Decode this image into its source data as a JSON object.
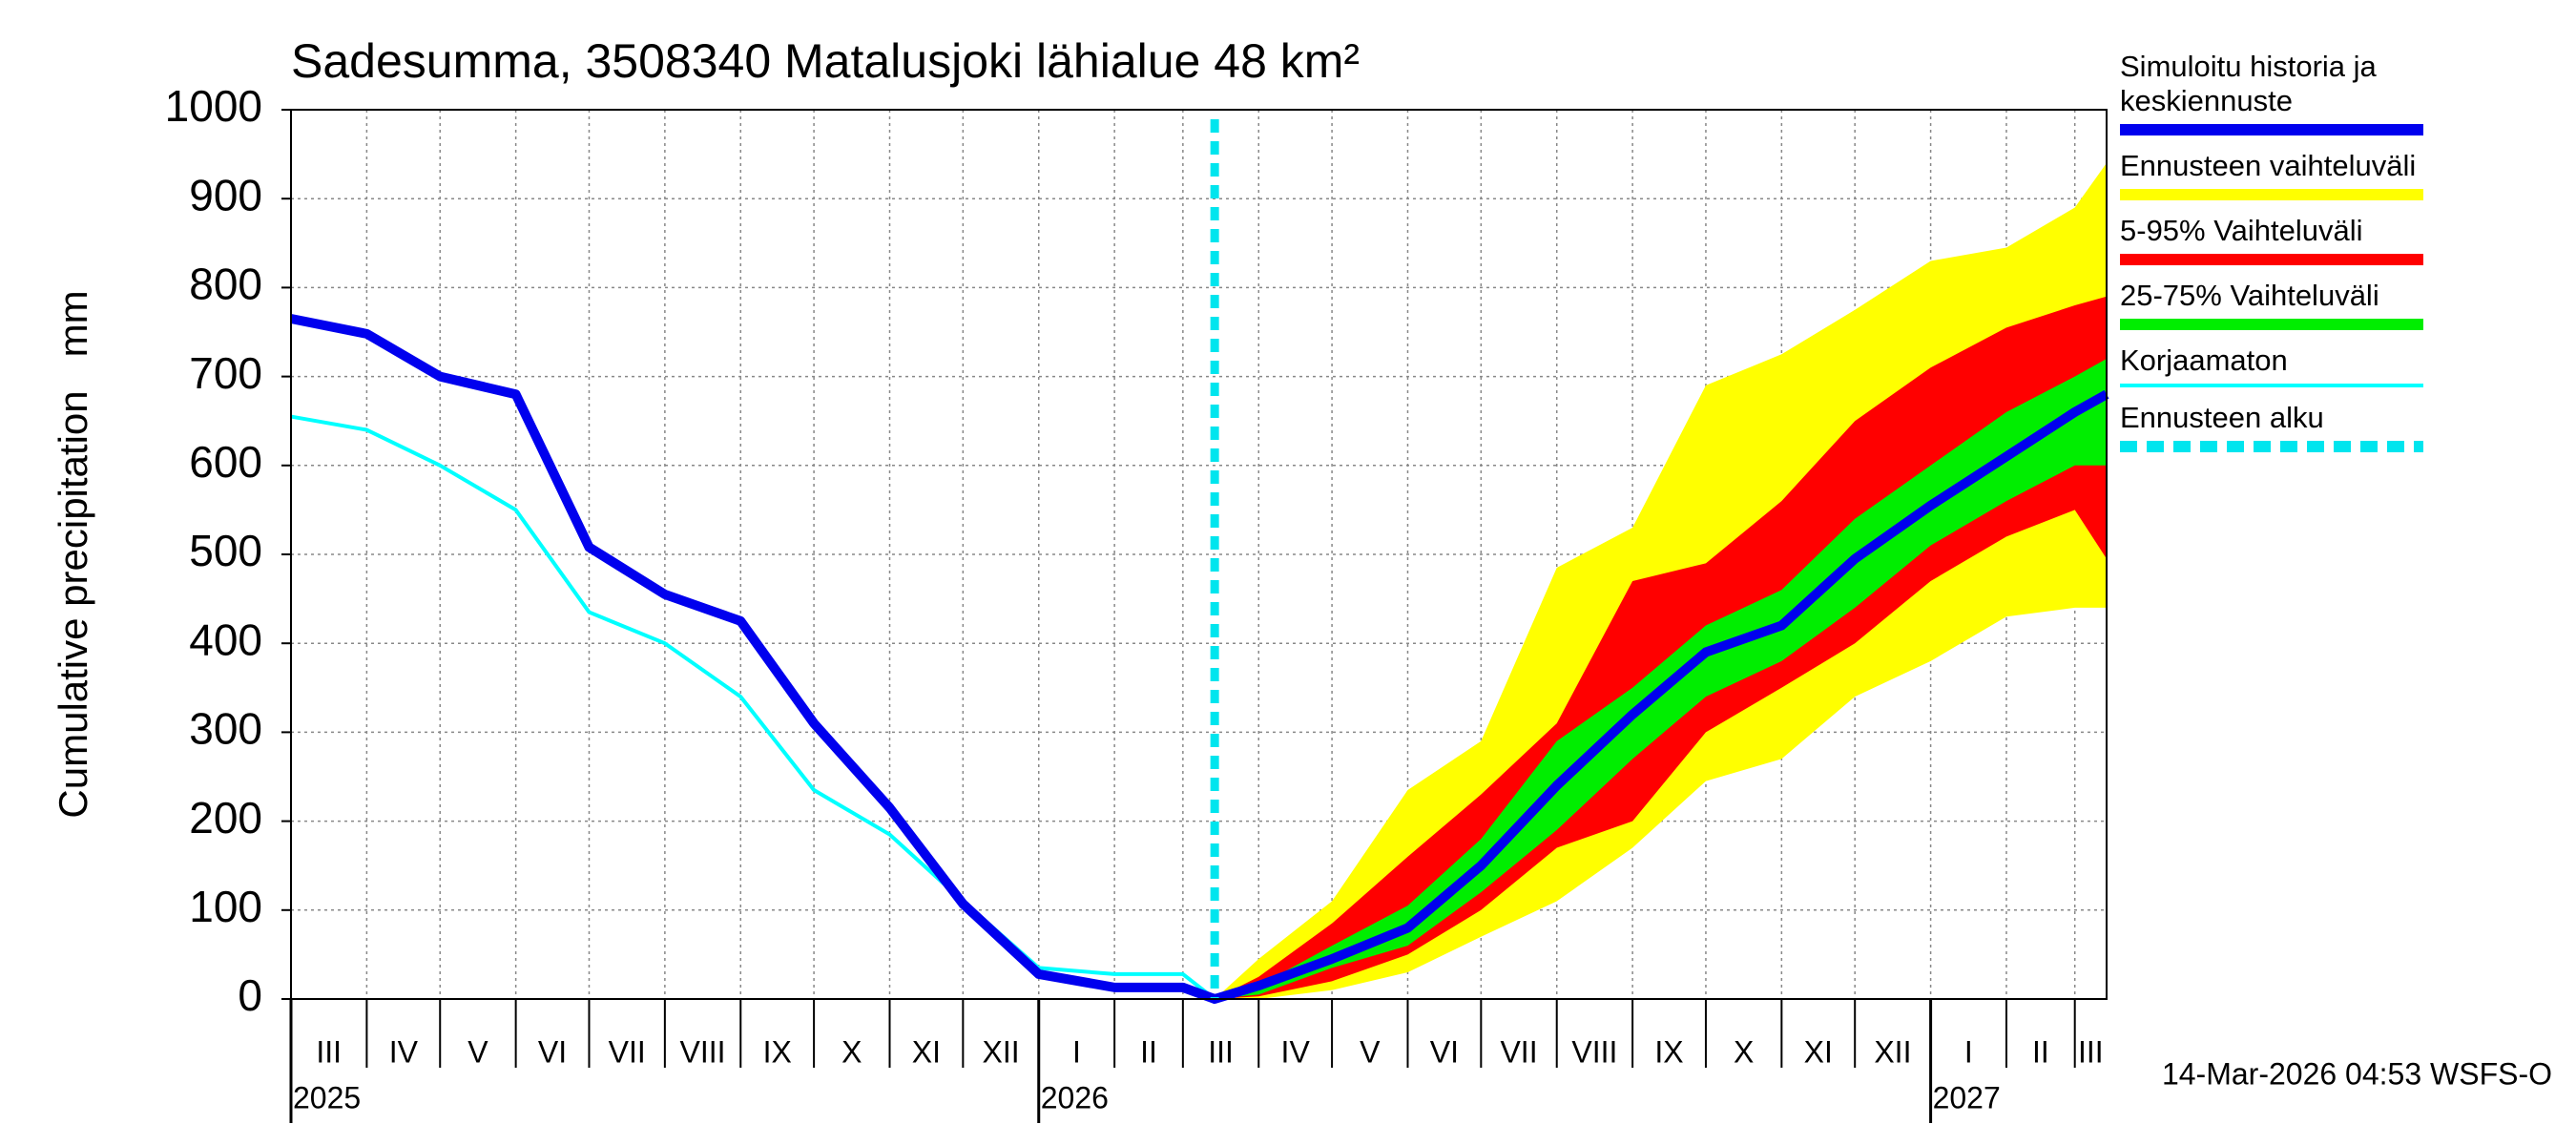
{
  "chart_data": {
    "type": "band-line",
    "title": "Sadesumma, 3508340 Matalusjoki lähialue 48 km²",
    "y_label": "Cumulative precipitation   mm",
    "footer": "14-Mar-2026 04:53 WSFS-O",
    "x": [
      "2025-03-01",
      "2025-04-01",
      "2025-05-01",
      "2025-06-01",
      "2025-07-01",
      "2025-08-01",
      "2025-09-01",
      "2025-10-01",
      "2025-11-01",
      "2025-12-01",
      "2026-01-01",
      "2026-02-01",
      "2026-03-01",
      "2026-03-14",
      "2026-04-01",
      "2026-05-01",
      "2026-06-01",
      "2026-07-01",
      "2026-08-01",
      "2026-09-01",
      "2026-10-01",
      "2026-11-01",
      "2026-12-01",
      "2027-01-01",
      "2027-02-01",
      "2027-03-01",
      "2027-03-14"
    ],
    "xlim": [
      "2025-03-01",
      "2027-03-14"
    ],
    "ylim": [
      0,
      1000
    ],
    "yticks": [
      0,
      100,
      200,
      300,
      400,
      500,
      600,
      700,
      800,
      900,
      1000
    ],
    "grid": true,
    "xticks": [
      {
        "value": "2025-03-01",
        "label": "III"
      },
      {
        "value": "2025-04-01",
        "label": "IV"
      },
      {
        "value": "2025-05-01",
        "label": "V"
      },
      {
        "value": "2025-06-01",
        "label": "VI"
      },
      {
        "value": "2025-07-01",
        "label": "VII"
      },
      {
        "value": "2025-08-01",
        "label": "VIII"
      },
      {
        "value": "2025-09-01",
        "label": "IX"
      },
      {
        "value": "2025-10-01",
        "label": "X"
      },
      {
        "value": "2025-11-01",
        "label": "XI"
      },
      {
        "value": "2025-12-01",
        "label": "XII"
      },
      {
        "value": "2026-01-01",
        "label": "I"
      },
      {
        "value": "2026-02-01",
        "label": "II"
      },
      {
        "value": "2026-03-01",
        "label": "III"
      },
      {
        "value": "2026-04-01",
        "label": "IV"
      },
      {
        "value": "2026-05-01",
        "label": "V"
      },
      {
        "value": "2026-06-01",
        "label": "VI"
      },
      {
        "value": "2026-07-01",
        "label": "VII"
      },
      {
        "value": "2026-08-01",
        "label": "VIII"
      },
      {
        "value": "2026-09-01",
        "label": "IX"
      },
      {
        "value": "2026-10-01",
        "label": "X"
      },
      {
        "value": "2026-11-01",
        "label": "XI"
      },
      {
        "value": "2026-12-01",
        "label": "XII"
      },
      {
        "value": "2027-01-01",
        "label": "I"
      },
      {
        "value": "2027-02-01",
        "label": "II"
      },
      {
        "value": "2027-03-01",
        "label": "III"
      }
    ],
    "year_ticks": [
      {
        "value": "2025-03-01",
        "label": "2025"
      },
      {
        "value": "2026-01-01",
        "label": "2026"
      },
      {
        "value": "2027-01-01",
        "label": "2027"
      }
    ],
    "bands": [
      {
        "name": "Ennusteen vaihteluväli",
        "color": "#ffff00",
        "lower": [
          null,
          null,
          null,
          null,
          null,
          null,
          null,
          null,
          null,
          null,
          null,
          null,
          null,
          0,
          0,
          10,
          30,
          70,
          110,
          170,
          245,
          270,
          340,
          380,
          430,
          440,
          440
        ],
        "upper": [
          null,
          null,
          null,
          null,
          null,
          null,
          null,
          null,
          null,
          null,
          null,
          null,
          null,
          0,
          45,
          110,
          235,
          290,
          485,
          530,
          690,
          725,
          775,
          830,
          845,
          890,
          940
        ]
      },
      {
        "name": "5-95% Vaihteluväli",
        "color": "#ff0000",
        "lower": [
          null,
          null,
          null,
          null,
          null,
          null,
          null,
          null,
          null,
          null,
          null,
          null,
          null,
          0,
          3,
          20,
          50,
          100,
          170,
          200,
          300,
          350,
          400,
          470,
          520,
          550,
          495
        ],
        "upper": [
          null,
          null,
          null,
          null,
          null,
          null,
          null,
          null,
          null,
          null,
          null,
          null,
          null,
          0,
          25,
          85,
          160,
          230,
          310,
          470,
          490,
          560,
          650,
          710,
          755,
          780,
          790
        ]
      },
      {
        "name": "25-75% Vaihteluväli",
        "color": "#00ee00",
        "lower": [
          null,
          null,
          null,
          null,
          null,
          null,
          null,
          null,
          null,
          null,
          null,
          null,
          null,
          0,
          5,
          35,
          60,
          120,
          190,
          270,
          340,
          380,
          440,
          510,
          560,
          600,
          600
        ],
        "upper": [
          null,
          null,
          null,
          null,
          null,
          null,
          null,
          null,
          null,
          null,
          null,
          null,
          null,
          0,
          15,
          60,
          105,
          180,
          290,
          350,
          420,
          460,
          540,
          600,
          660,
          700,
          720
        ]
      }
    ],
    "series": [
      {
        "name": "Simuloitu historia ja keskiennuste",
        "color": "#0000ee",
        "values": [
          765,
          748,
          700,
          680,
          508,
          455,
          425,
          310,
          215,
          107,
          28,
          13,
          13,
          0,
          15,
          45,
          80,
          150,
          240,
          320,
          390,
          420,
          495,
          555,
          610,
          660,
          680
        ]
      },
      {
        "name": "Korjaamaton",
        "color": "#00ffff",
        "values": [
          655,
          640,
          600,
          550,
          435,
          400,
          340,
          235,
          185,
          110,
          35,
          28,
          28,
          0,
          null,
          null,
          null,
          null,
          null,
          null,
          null,
          null,
          null,
          null,
          null,
          null,
          null
        ]
      }
    ],
    "forecast_start": {
      "name": "Ennusteen alku",
      "x": "2026-03-14",
      "color": "#00e5ee"
    }
  }
}
